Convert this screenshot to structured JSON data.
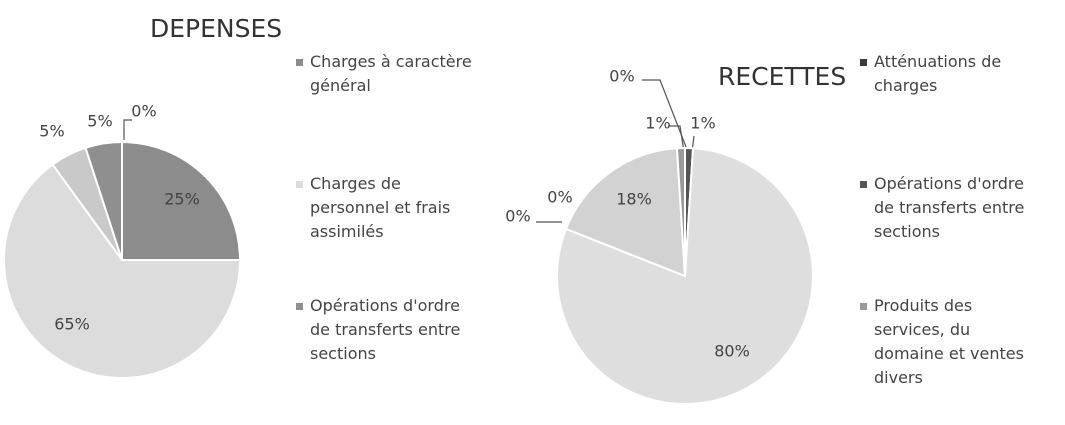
{
  "chart_data": [
    {
      "type": "pie",
      "title": "DEPENSES",
      "categories": [
        "Charges à caractère général",
        "Charges de personnel et frais assimilés",
        null,
        "Opérations d'ordre de transferts entre sections",
        null
      ],
      "values": [
        25,
        65,
        5,
        5,
        0
      ],
      "value_labels": [
        "25%",
        "65%",
        "5%",
        "5%",
        "0%"
      ],
      "colors": [
        "#8c8c8c",
        "#dcdcdc",
        "#c9c9c9",
        "#8f8f8f",
        "#555555"
      ],
      "legend": "right"
    },
    {
      "type": "pie",
      "title": "RECETTES",
      "categories": [
        "Atténuations de charges",
        "Opérations d'ordre de transferts entre sections",
        "Produits des services, du domaine et ventes divers",
        null,
        null,
        null,
        null
      ],
      "values": [
        0,
        1,
        80,
        0,
        0,
        18,
        1
      ],
      "value_labels": [
        "0%",
        "1%",
        "80%",
        "0%",
        "0%",
        "18%",
        "1%"
      ],
      "colors": [
        "#3a3a3a",
        "#555555",
        "#dedede",
        "#aaaaaa",
        "#bbbbbb",
        "#d2d2d2",
        "#9a9a9a"
      ],
      "legend": "right"
    }
  ]
}
